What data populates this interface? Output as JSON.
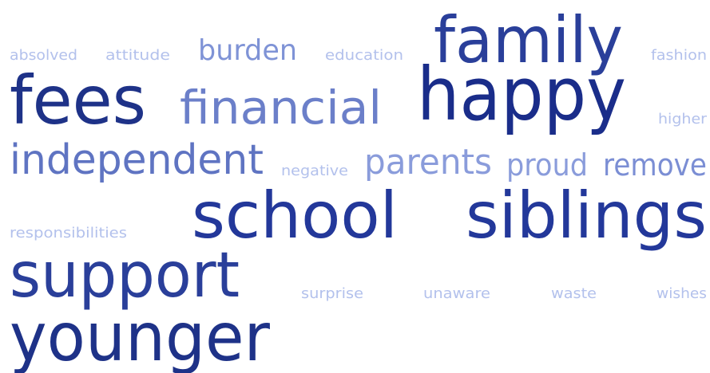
{
  "words": [
    "absolved",
    "attitude",
    "burden",
    "education",
    "family",
    "fashion",
    "fees",
    "financial",
    "happy",
    "higher",
    "independent",
    "negative",
    "parents",
    "proud",
    "remove",
    "responsibilities",
    "school",
    "siblings",
    "support",
    "surprise",
    "unaware",
    "waste",
    "wishes",
    "younger"
  ]
}
